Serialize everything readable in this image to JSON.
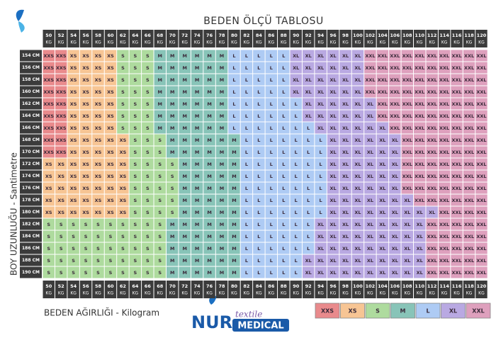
{
  "header": {
    "title": "BEDEN ÖLÇÜ TABLOSU"
  },
  "axis_labels": {
    "y": "BOY UZUNLUĞU - Santimetre",
    "x": "BEDEN AĞIRLIĞI - Kilogram"
  },
  "table": {
    "unit": "KG",
    "columns": [
      "50",
      "52",
      "54",
      "56",
      "58",
      "60",
      "62",
      "64",
      "66",
      "68",
      "70",
      "72",
      "74",
      "76",
      "78",
      "80",
      "82",
      "84",
      "86",
      "88",
      "90",
      "92",
      "94",
      "96",
      "98",
      "100",
      "102",
      "104",
      "106",
      "108",
      "110",
      "112",
      "114",
      "116",
      "118",
      "120"
    ],
    "rows": [
      {
        "label": "154 CM",
        "cells": [
          "XXS",
          "XXS",
          "XS",
          "XS",
          "XS",
          "XS",
          "S",
          "S",
          "S",
          "M",
          "M",
          "M",
          "M",
          "M",
          "M",
          "L",
          "L",
          "L",
          "L",
          "L",
          "XL",
          "XL",
          "XL",
          "XL",
          "XL",
          "XL",
          "XXL",
          "XXL",
          "XXL",
          "XXL",
          "XXL",
          "XXL",
          "XXL",
          "XXL",
          "XXL",
          "XXL"
        ]
      },
      {
        "label": "156 CM",
        "cells": [
          "XXS",
          "XXS",
          "XS",
          "XS",
          "XS",
          "XS",
          "S",
          "S",
          "S",
          "M",
          "M",
          "M",
          "M",
          "M",
          "M",
          "L",
          "L",
          "L",
          "L",
          "L",
          "XL",
          "XL",
          "XL",
          "XL",
          "XL",
          "XL",
          "XXL",
          "XXL",
          "XXL",
          "XXL",
          "XXL",
          "XXL",
          "XXL",
          "XXL",
          "XXL",
          "XXL"
        ]
      },
      {
        "label": "158 CM",
        "cells": [
          "XXS",
          "XXS",
          "XS",
          "XS",
          "XS",
          "XS",
          "S",
          "S",
          "S",
          "M",
          "M",
          "M",
          "M",
          "M",
          "M",
          "L",
          "L",
          "L",
          "L",
          "L",
          "XL",
          "XL",
          "XL",
          "XL",
          "XL",
          "XL",
          "XXL",
          "XXL",
          "XXL",
          "XXL",
          "XXL",
          "XXL",
          "XXL",
          "XXL",
          "XXL",
          "XXL"
        ]
      },
      {
        "label": "160 CM",
        "cells": [
          "XXS",
          "XXS",
          "XS",
          "XS",
          "XS",
          "XS",
          "S",
          "S",
          "S",
          "M",
          "M",
          "M",
          "M",
          "M",
          "M",
          "L",
          "L",
          "L",
          "L",
          "L",
          "XL",
          "XL",
          "XL",
          "XL",
          "XL",
          "XL",
          "XXL",
          "XXL",
          "XXL",
          "XXL",
          "XXL",
          "XXL",
          "XXL",
          "XXL",
          "XXL",
          "XXL"
        ]
      },
      {
        "label": "162 CM",
        "cells": [
          "XXS",
          "XXS",
          "XS",
          "XS",
          "XS",
          "XS",
          "S",
          "S",
          "S",
          "M",
          "M",
          "M",
          "M",
          "M",
          "M",
          "L",
          "L",
          "L",
          "L",
          "L",
          "L",
          "XL",
          "XL",
          "XL",
          "XL",
          "XL",
          "XL",
          "XXL",
          "XXL",
          "XXL",
          "XXL",
          "XXL",
          "XXL",
          "XXL",
          "XXL",
          "XXL"
        ]
      },
      {
        "label": "164 CM",
        "cells": [
          "XXS",
          "XXS",
          "XS",
          "XS",
          "XS",
          "XS",
          "S",
          "S",
          "S",
          "M",
          "M",
          "M",
          "M",
          "M",
          "M",
          "L",
          "L",
          "L",
          "L",
          "L",
          "L",
          "XL",
          "XL",
          "XL",
          "XL",
          "XL",
          "XL",
          "XXL",
          "XXL",
          "XXL",
          "XXL",
          "XXL",
          "XXL",
          "XXL",
          "XXL",
          "XXL"
        ]
      },
      {
        "label": "166 CM",
        "cells": [
          "XXS",
          "XXS",
          "XS",
          "XS",
          "XS",
          "XS",
          "S",
          "S",
          "S",
          "M",
          "M",
          "M",
          "M",
          "M",
          "M",
          "L",
          "L",
          "L",
          "L",
          "L",
          "L",
          "L",
          "XL",
          "XL",
          "XL",
          "XL",
          "XL",
          "XL",
          "XXL",
          "XXL",
          "XXL",
          "XXL",
          "XXL",
          "XXL",
          "XXL",
          "XXL"
        ]
      },
      {
        "label": "168 CM",
        "cells": [
          "XXS",
          "XXS",
          "XS",
          "XS",
          "XS",
          "XS",
          "XS",
          "S",
          "S",
          "S",
          "M",
          "M",
          "M",
          "M",
          "M",
          "M",
          "L",
          "L",
          "L",
          "L",
          "L",
          "L",
          "L",
          "XL",
          "XL",
          "XL",
          "XL",
          "XL",
          "XL",
          "XXL",
          "XXL",
          "XXL",
          "XXL",
          "XXL",
          "XXL",
          "XXL"
        ]
      },
      {
        "label": "170 CM",
        "cells": [
          "XXS",
          "XXS",
          "XS",
          "XS",
          "XS",
          "XS",
          "XS",
          "S",
          "S",
          "S",
          "M",
          "M",
          "M",
          "M",
          "M",
          "M",
          "L",
          "L",
          "L",
          "L",
          "L",
          "L",
          "L",
          "XL",
          "XL",
          "XL",
          "XL",
          "XL",
          "XL",
          "XXL",
          "XXL",
          "XXL",
          "XXL",
          "XXL",
          "XXL",
          "XXL"
        ]
      },
      {
        "label": "172 CM",
        "cells": [
          "XS",
          "XS",
          "XS",
          "XS",
          "XS",
          "XS",
          "XS",
          "S",
          "S",
          "S",
          "S",
          "M",
          "M",
          "M",
          "M",
          "M",
          "L",
          "L",
          "L",
          "L",
          "L",
          "L",
          "L",
          "XL",
          "XL",
          "XL",
          "XL",
          "XL",
          "XL",
          "XXL",
          "XXL",
          "XXL",
          "XXL",
          "XXL",
          "XXL",
          "XXL"
        ]
      },
      {
        "label": "174 CM",
        "cells": [
          "XS",
          "XS",
          "XS",
          "XS",
          "XS",
          "XS",
          "XS",
          "S",
          "S",
          "S",
          "S",
          "M",
          "M",
          "M",
          "M",
          "M",
          "L",
          "L",
          "L",
          "L",
          "L",
          "L",
          "L",
          "XL",
          "XL",
          "XL",
          "XL",
          "XL",
          "XL",
          "XXL",
          "XXL",
          "XXL",
          "XXL",
          "XXL",
          "XXL",
          "XXL"
        ]
      },
      {
        "label": "176 CM",
        "cells": [
          "XS",
          "XS",
          "XS",
          "XS",
          "XS",
          "XS",
          "XS",
          "S",
          "S",
          "S",
          "S",
          "M",
          "M",
          "M",
          "M",
          "M",
          "L",
          "L",
          "L",
          "L",
          "L",
          "L",
          "L",
          "XL",
          "XL",
          "XL",
          "XL",
          "XL",
          "XL",
          "XXL",
          "XXL",
          "XXL",
          "XXL",
          "XXL",
          "XXL",
          "XXL"
        ]
      },
      {
        "label": "178 CM",
        "cells": [
          "XS",
          "XS",
          "XS",
          "XS",
          "XS",
          "XS",
          "XS",
          "S",
          "S",
          "S",
          "S",
          "M",
          "M",
          "M",
          "M",
          "M",
          "L",
          "L",
          "L",
          "L",
          "L",
          "L",
          "L",
          "XL",
          "XL",
          "XL",
          "XL",
          "XL",
          "XL",
          "XL",
          "XXL",
          "XXL",
          "XXL",
          "XXL",
          "XXL",
          "XXL"
        ]
      },
      {
        "label": "180 CM",
        "cells": [
          "XS",
          "XS",
          "XS",
          "XS",
          "XS",
          "XS",
          "XS",
          "S",
          "S",
          "S",
          "S",
          "M",
          "M",
          "M",
          "M",
          "M",
          "L",
          "L",
          "L",
          "L",
          "L",
          "L",
          "L",
          "XL",
          "XL",
          "XL",
          "XL",
          "XL",
          "XL",
          "XL",
          "XL",
          "XL",
          "XXL",
          "XXL",
          "XXL",
          "XXL"
        ]
      },
      {
        "label": "182 CM",
        "cells": [
          "S",
          "S",
          "S",
          "S",
          "S",
          "S",
          "S",
          "S",
          "S",
          "S",
          "M",
          "M",
          "M",
          "M",
          "M",
          "M",
          "L",
          "L",
          "L",
          "L",
          "L",
          "L",
          "XL",
          "XL",
          "XL",
          "XL",
          "XL",
          "XL",
          "XL",
          "XL",
          "XL",
          "XXL",
          "XXL",
          "XXL",
          "XXL",
          "XXL"
        ]
      },
      {
        "label": "184 CM",
        "cells": [
          "S",
          "S",
          "S",
          "S",
          "S",
          "S",
          "S",
          "S",
          "S",
          "S",
          "M",
          "M",
          "M",
          "M",
          "M",
          "M",
          "L",
          "L",
          "L",
          "L",
          "L",
          "L",
          "XL",
          "XL",
          "XL",
          "XL",
          "XL",
          "XL",
          "XL",
          "XL",
          "XL",
          "XXL",
          "XXL",
          "XXL",
          "XXL",
          "XXL"
        ]
      },
      {
        "label": "186 CM",
        "cells": [
          "S",
          "S",
          "S",
          "S",
          "S",
          "S",
          "S",
          "S",
          "S",
          "S",
          "M",
          "M",
          "M",
          "M",
          "M",
          "M",
          "L",
          "L",
          "L",
          "L",
          "L",
          "L",
          "XL",
          "XL",
          "XL",
          "XL",
          "XL",
          "XL",
          "XL",
          "XL",
          "XL",
          "XXL",
          "XXL",
          "XXL",
          "XXL",
          "XXL"
        ]
      },
      {
        "label": "188 CM",
        "cells": [
          "S",
          "S",
          "S",
          "S",
          "S",
          "S",
          "S",
          "S",
          "S",
          "S",
          "M",
          "M",
          "M",
          "M",
          "M",
          "M",
          "L",
          "L",
          "L",
          "L",
          "L",
          "XL",
          "XL",
          "XL",
          "XL",
          "XL",
          "XL",
          "XL",
          "XL",
          "XL",
          "XL",
          "XXL",
          "XXL",
          "XXL",
          "XXL",
          "XXL"
        ]
      },
      {
        "label": "190 CM",
        "cells": [
          "S",
          "S",
          "S",
          "S",
          "S",
          "S",
          "S",
          "S",
          "S",
          "S",
          "M",
          "M",
          "M",
          "M",
          "M",
          "M",
          "L",
          "L",
          "L",
          "L",
          "L",
          "XL",
          "XL",
          "XL",
          "XL",
          "XL",
          "XL",
          "XL",
          "XL",
          "XL",
          "XL",
          "XXL",
          "XXL",
          "XXL",
          "XXL",
          "XXL"
        ]
      }
    ]
  },
  "legend": [
    {
      "label": "XXS",
      "color": "#e98a8c"
    },
    {
      "label": "XS",
      "color": "#f7c594"
    },
    {
      "label": "S",
      "color": "#aedb9e"
    },
    {
      "label": "M",
      "color": "#88c4b8"
    },
    {
      "label": "L",
      "color": "#aecbf4"
    },
    {
      "label": "XL",
      "color": "#b9a9e2"
    },
    {
      "label": "XXL",
      "color": "#dea0bd"
    }
  ],
  "logo": {
    "brand": "NUR",
    "script": "textile",
    "badge": "MEDICAL"
  }
}
